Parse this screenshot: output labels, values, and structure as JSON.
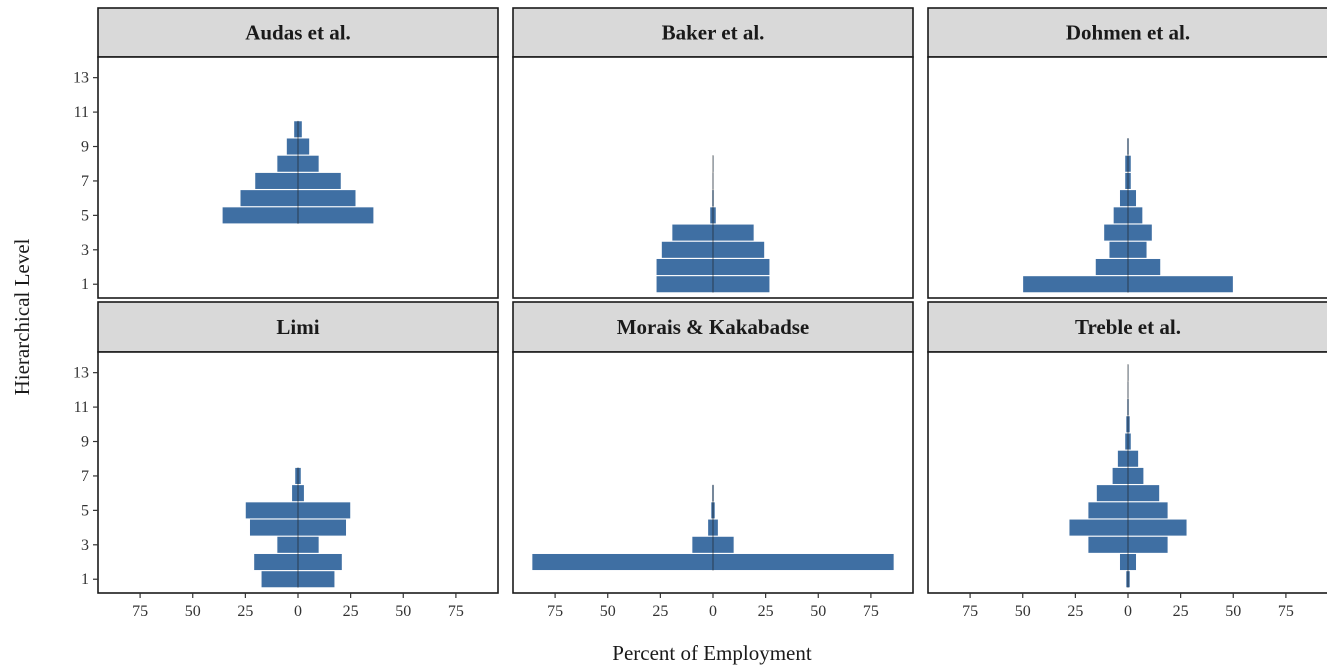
{
  "chart_data": {
    "type": "bar",
    "orientation": "horizontal-pyramid",
    "xlabel": "Percent of Employment",
    "ylabel": "Hierarchical Level",
    "x_ticks": [
      -75,
      -50,
      -25,
      0,
      25,
      50,
      75
    ],
    "x_tick_labels": [
      "75",
      "50",
      "25",
      "0",
      "25",
      "50",
      "75"
    ],
    "y_ticks": [
      1,
      3,
      5,
      7,
      9,
      11,
      13
    ],
    "y_tick_labels": [
      "1",
      "3",
      "5",
      "7",
      "9",
      "11",
      "13"
    ],
    "xlim": [
      -95,
      95
    ],
    "ylim": [
      0.2,
      14.2
    ],
    "bar_color": "#3f6fa3",
    "grid": false,
    "legend": "none",
    "panels": [
      {
        "title": "Audas et al.",
        "levels": [
          5,
          6,
          7,
          8,
          9,
          10
        ],
        "values": [
          36,
          27.5,
          20.5,
          10,
          5.5,
          2
        ]
      },
      {
        "title": "Baker et al.",
        "levels": [
          1,
          2,
          3,
          4,
          5,
          6,
          7,
          8
        ],
        "values": [
          27,
          27,
          24.5,
          19.5,
          1.5,
          0.5,
          0.3,
          0.2
        ]
      },
      {
        "title": "Dohmen et al.",
        "levels": [
          1,
          2,
          3,
          4,
          5,
          6,
          7,
          8,
          9
        ],
        "values": [
          50,
          15.5,
          9,
          11.5,
          7,
          4,
          1.5,
          1.5,
          0.5
        ]
      },
      {
        "title": "Limi",
        "levels": [
          1,
          2,
          3,
          4,
          5,
          6,
          7
        ],
        "values": [
          17.5,
          21,
          10,
          23,
          25,
          3,
          1.5
        ]
      },
      {
        "title": "Morais & Kakabadse",
        "levels": [
          2,
          3,
          4,
          5,
          6
        ],
        "values": [
          86,
          10,
          2.5,
          1,
          0.5
        ]
      },
      {
        "title": "Treble et al.",
        "levels": [
          1,
          2,
          3,
          4,
          5,
          6,
          7,
          8,
          9,
          10,
          11,
          12,
          13
        ],
        "values": [
          1,
          4,
          19,
          28,
          19,
          15,
          7.5,
          5,
          1.5,
          1,
          0.5,
          0.3,
          0.2
        ]
      }
    ]
  }
}
